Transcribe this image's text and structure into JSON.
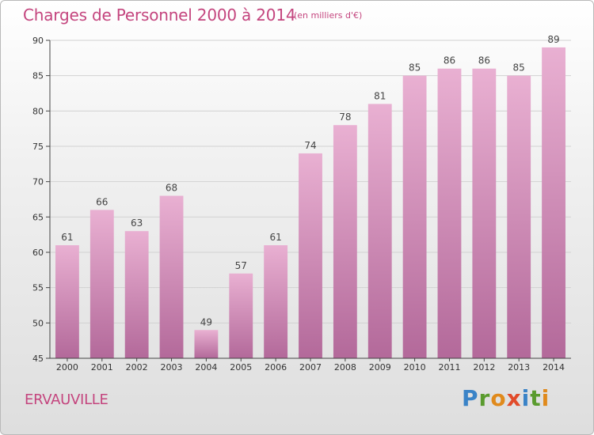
{
  "title": "Charges de Personnel 2000 à 2014",
  "subtitle": "(en milliers d'€)",
  "place": "ERVAUVILLE",
  "logo": {
    "text": "Proxiti",
    "colors": [
      "#3a83c7",
      "#5a9b2e",
      "#e08a1c",
      "#e14b2a",
      "#3a83c7",
      "#5a9b2e",
      "#e08a1c"
    ]
  },
  "colors": {
    "bar_light": "#e9b0d2",
    "bar_dark": "#b3699a",
    "text_accent": "#c4457e",
    "grid": "#d2d2d2"
  },
  "chart_data": {
    "type": "bar",
    "title": "Charges de Personnel 2000 à 2014",
    "subtitle": "(en milliers d'€)",
    "categories": [
      "2000",
      "2001",
      "2002",
      "2003",
      "2004",
      "2005",
      "2006",
      "2007",
      "2008",
      "2009",
      "2010",
      "2011",
      "2012",
      "2013",
      "2014"
    ],
    "values": [
      61,
      66,
      63,
      68,
      49,
      57,
      61,
      74,
      78,
      81,
      85,
      86,
      86,
      85,
      89
    ],
    "ylim": [
      45,
      90
    ],
    "yticks": [
      45,
      50,
      55,
      60,
      65,
      70,
      75,
      80,
      85,
      90
    ],
    "grid": true,
    "data_labels": true
  }
}
